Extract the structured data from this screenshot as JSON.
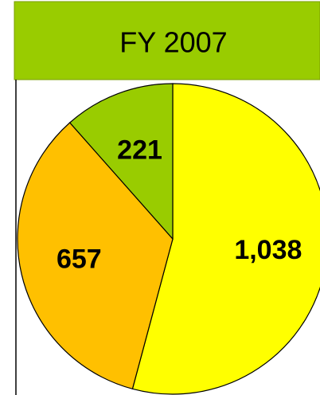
{
  "chart_data": {
    "type": "pie",
    "title": "FY 2007",
    "categories": [
      "1,038",
      "657",
      "221"
    ],
    "values": [
      1038,
      657,
      221
    ],
    "value_labels": [
      "1,038",
      "657",
      "221"
    ],
    "colors": [
      "#ffff00",
      "#ffc000",
      "#99cc00"
    ],
    "title_color": "#99cc00"
  }
}
